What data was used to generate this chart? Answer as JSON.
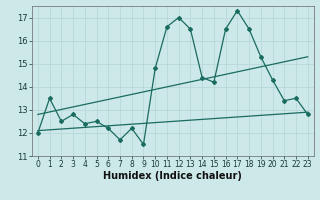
{
  "xlabel": "Humidex (Indice chaleur)",
  "xlim": [
    -0.5,
    23.5
  ],
  "ylim": [
    11,
    17.5
  ],
  "yticks": [
    11,
    12,
    13,
    14,
    15,
    16,
    17
  ],
  "xticks": [
    0,
    1,
    2,
    3,
    4,
    5,
    6,
    7,
    8,
    9,
    10,
    11,
    12,
    13,
    14,
    15,
    16,
    17,
    18,
    19,
    20,
    21,
    22,
    23
  ],
  "bg_color": "#cce8e8",
  "grid_color": "#b8d8d8",
  "line_color": "#1a6b60",
  "line1_x": [
    0,
    1,
    2,
    3,
    4,
    5,
    6,
    7,
    8,
    9,
    10,
    11,
    12,
    13,
    14,
    15,
    16,
    17,
    18,
    19,
    20,
    21,
    22,
    23
  ],
  "line1_y": [
    12.0,
    13.5,
    12.5,
    12.8,
    12.4,
    12.5,
    12.2,
    11.7,
    12.2,
    11.5,
    14.8,
    16.6,
    17.0,
    16.5,
    14.4,
    14.2,
    16.5,
    17.3,
    16.5,
    15.3,
    14.3,
    13.4,
    13.5,
    12.8
  ],
  "line2_x": [
    0,
    23
  ],
  "line2_y": [
    12.8,
    15.3
  ],
  "line3_x": [
    0,
    23
  ],
  "line3_y": [
    12.1,
    12.9
  ],
  "tick_fontsize": 5.5,
  "xlabel_fontsize": 7.0
}
